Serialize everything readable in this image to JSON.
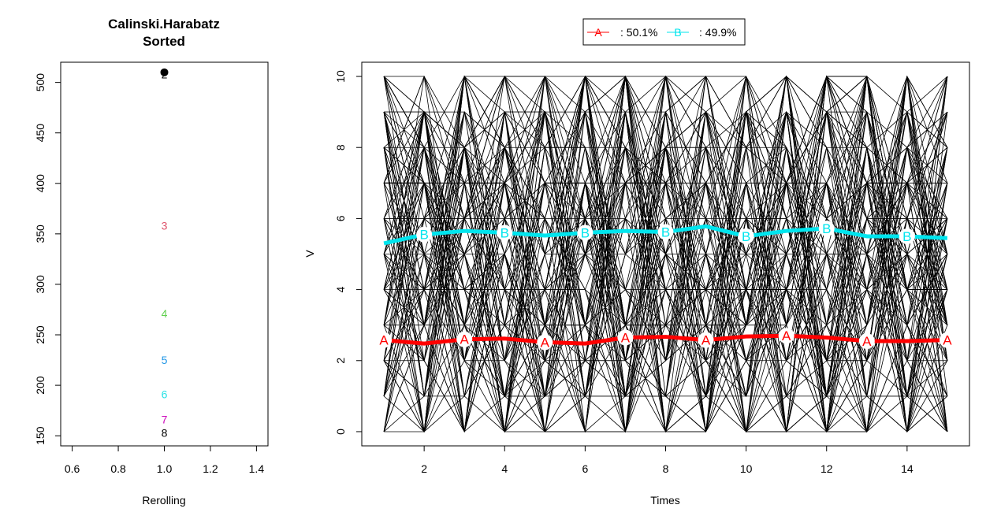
{
  "chart_data": [
    {
      "type": "scatter",
      "title": "Calinski.Harabatz",
      "subtitle": "Sorted",
      "xlabel": "Rerolling",
      "ylabel": "",
      "xlim": [
        0.55,
        1.45
      ],
      "ylim": [
        140,
        520
      ],
      "xticks": [
        0.6,
        0.8,
        1.0,
        1.2,
        1.4
      ],
      "xtick_labels": [
        "0.6",
        "0.8",
        "1.0",
        "1.2",
        "1.4"
      ],
      "yticks": [
        150,
        200,
        250,
        300,
        350,
        400,
        450,
        500
      ],
      "ytick_labels": [
        "150",
        "200",
        "250",
        "300",
        "350",
        "400",
        "450",
        "500"
      ],
      "point": {
        "x": 1,
        "y": 510,
        "color": "#000000"
      },
      "labels": [
        {
          "text": "2",
          "x": 1,
          "y": 508,
          "color": "#000000"
        },
        {
          "text": "3",
          "x": 1,
          "y": 358,
          "color": "#DF536B"
        },
        {
          "text": "4",
          "x": 1,
          "y": 271,
          "color": "#61D04F"
        },
        {
          "text": "5",
          "x": 1,
          "y": 225,
          "color": "#2297E6"
        },
        {
          "text": "6",
          "x": 1,
          "y": 191,
          "color": "#28E2E5"
        },
        {
          "text": "7",
          "x": 1,
          "y": 166,
          "color": "#CD0BBC"
        },
        {
          "text": "8",
          "x": 1,
          "y": 153,
          "color": "#000000"
        }
      ],
      "grid": false
    },
    {
      "type": "line",
      "title": "",
      "xlabel": "Times",
      "ylabel": "V",
      "xlim": [
        0.45,
        15.55
      ],
      "ylim": [
        -0.4,
        10.4
      ],
      "xticks": [
        2,
        4,
        6,
        8,
        10,
        12,
        14
      ],
      "xtick_labels": [
        "2",
        "4",
        "6",
        "8",
        "10",
        "12",
        "14"
      ],
      "yticks": [
        0,
        2,
        4,
        6,
        8,
        10
      ],
      "ytick_labels": [
        "0",
        "2",
        "4",
        "6",
        "8",
        "10"
      ],
      "x": [
        1,
        2,
        3,
        4,
        5,
        6,
        7,
        8,
        9,
        10,
        11,
        12,
        13,
        14,
        15
      ],
      "background_trajectories": {
        "count": 120,
        "value_range": [
          0,
          10
        ],
        "color": "#000000"
      },
      "series": [
        {
          "name": "A",
          "marker": "A",
          "color": "#FF0000",
          "values": [
            2.58,
            2.48,
            2.6,
            2.62,
            2.52,
            2.48,
            2.65,
            2.67,
            2.58,
            2.68,
            2.7,
            2.65,
            2.55,
            2.55,
            2.58
          ]
        },
        {
          "name": "B",
          "marker": "B",
          "color": "#00E5EE",
          "values": [
            5.3,
            5.55,
            5.65,
            5.6,
            5.52,
            5.6,
            5.65,
            5.62,
            5.78,
            5.5,
            5.65,
            5.72,
            5.5,
            5.5,
            5.45
          ]
        }
      ],
      "legend": {
        "placement": "top",
        "entries": [
          {
            "marker": "A",
            "text": ": 50.1%",
            "color": "#FF0000"
          },
          {
            "marker": "B",
            "text": ": 49.9%",
            "color": "#00E5EE"
          }
        ]
      },
      "grid": false
    }
  ]
}
